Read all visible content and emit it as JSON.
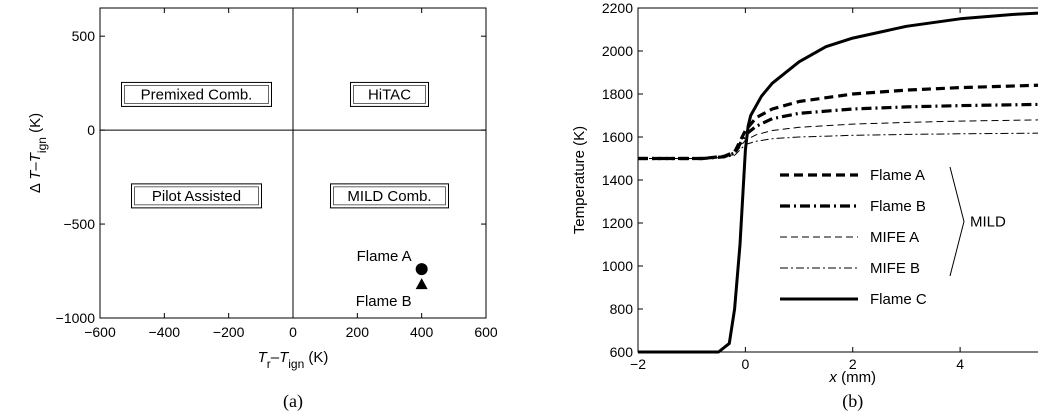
{
  "chart_data": [
    {
      "type": "scatter",
      "caption": "(a)",
      "xlabel_parts": [
        "T",
        "r",
        "–T",
        "ign",
        " (K)"
      ],
      "ylabel_parts": [
        "Δ ",
        "T",
        "–T",
        "ign",
        "  (K)"
      ],
      "xlim": [
        -600,
        600
      ],
      "ylim": [
        -1000,
        650
      ],
      "xticks": [
        -600,
        -400,
        -200,
        0,
        200,
        400,
        600
      ],
      "yticks": [
        -1000,
        -500,
        0,
        500
      ],
      "grid": false,
      "regions": [
        {
          "label": "Premixed Comb.",
          "x": -300,
          "y": 190
        },
        {
          "label": "HiTAC",
          "x": 300,
          "y": 190
        },
        {
          "label": "Pilot Assisted",
          "x": -300,
          "y": -350
        },
        {
          "label": "MILD Comb.",
          "x": 300,
          "y": -350
        }
      ],
      "points": [
        {
          "name": "Flame A",
          "x": 400,
          "y": -740,
          "marker": "circle"
        },
        {
          "name": "Flame B",
          "x": 400,
          "y": -820,
          "marker": "triangle"
        }
      ]
    },
    {
      "type": "line",
      "caption": "(b)",
      "xlabel_parts": [
        "x",
        " (mm)"
      ],
      "ylabel": "Temperature (K)",
      "xlim": [
        -2,
        5.6
      ],
      "ylim": [
        600,
        2200
      ],
      "xticks": [
        -2,
        0,
        2,
        4
      ],
      "yticks": [
        600,
        800,
        1000,
        1200,
        1400,
        1600,
        1800,
        2000,
        2200
      ],
      "grid": false,
      "legend_position": "bottom-center",
      "group_label": "MILD",
      "series": [
        {
          "name": "Flame A",
          "style": "dashed-thick",
          "values": [
            [
              -2,
              1500
            ],
            [
              -0.8,
              1500
            ],
            [
              -0.4,
              1510
            ],
            [
              -0.2,
              1530
            ],
            [
              0,
              1630
            ],
            [
              0.2,
              1690
            ],
            [
              0.5,
              1730
            ],
            [
              1,
              1765
            ],
            [
              2,
              1800
            ],
            [
              3,
              1818
            ],
            [
              4,
              1830
            ],
            [
              5.6,
              1842
            ]
          ]
        },
        {
          "name": "Flame B",
          "style": "dashdot-thick",
          "values": [
            [
              -2,
              1500
            ],
            [
              -0.8,
              1500
            ],
            [
              -0.4,
              1508
            ],
            [
              -0.2,
              1525
            ],
            [
              0,
              1610
            ],
            [
              0.2,
              1650
            ],
            [
              0.5,
              1685
            ],
            [
              1,
              1710
            ],
            [
              2,
              1730
            ],
            [
              3,
              1740
            ],
            [
              4,
              1746
            ],
            [
              5.6,
              1752
            ]
          ]
        },
        {
          "name": "MIFE A",
          "style": "dashed-thin",
          "values": [
            [
              -2,
              1500
            ],
            [
              -0.8,
              1500
            ],
            [
              -0.4,
              1505
            ],
            [
              -0.2,
              1520
            ],
            [
              0,
              1585
            ],
            [
              0.2,
              1610
            ],
            [
              0.5,
              1630
            ],
            [
              1,
              1645
            ],
            [
              2,
              1660
            ],
            [
              3,
              1668
            ],
            [
              4,
              1674
            ],
            [
              5.6,
              1680
            ]
          ]
        },
        {
          "name": "MIFE B",
          "style": "dashdot-thin",
          "values": [
            [
              -2,
              1500
            ],
            [
              -0.8,
              1500
            ],
            [
              -0.4,
              1503
            ],
            [
              -0.2,
              1515
            ],
            [
              0,
              1565
            ],
            [
              0.2,
              1580
            ],
            [
              0.5,
              1592
            ],
            [
              1,
              1600
            ],
            [
              2,
              1608
            ],
            [
              3,
              1612
            ],
            [
              4,
              1615
            ],
            [
              5.6,
              1618
            ]
          ]
        },
        {
          "name": "Flame C",
          "style": "solid-thick",
          "values": [
            [
              -2,
              600
            ],
            [
              -0.5,
              600
            ],
            [
              -0.3,
              640
            ],
            [
              -0.2,
              800
            ],
            [
              -0.1,
              1100
            ],
            [
              0,
              1540
            ],
            [
              0.05,
              1650
            ],
            [
              0.1,
              1700
            ],
            [
              0.3,
              1790
            ],
            [
              0.5,
              1850
            ],
            [
              1,
              1950
            ],
            [
              1.5,
              2020
            ],
            [
              2,
              2060
            ],
            [
              3,
              2115
            ],
            [
              4,
              2150
            ],
            [
              5,
              2170
            ],
            [
              5.6,
              2178
            ]
          ]
        }
      ]
    }
  ]
}
